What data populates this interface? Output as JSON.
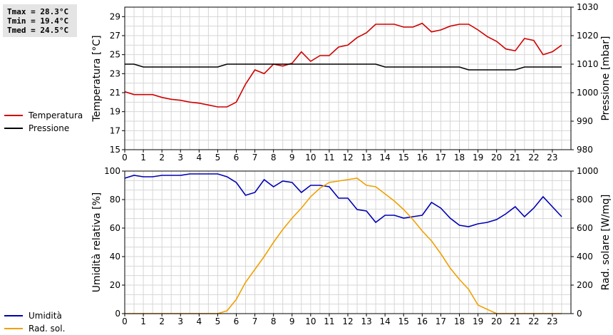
{
  "stats": {
    "tmax": "Tmax = 28.3°C",
    "tmin": "Tmin = 19.4°C",
    "tmed": "Tmed = 24.5°C"
  },
  "legend_top": [
    {
      "label": "Temperatura",
      "color": "#d00000"
    },
    {
      "label": "Pressione",
      "color": "#000000"
    }
  ],
  "legend_bottom": [
    {
      "label": "Umidità",
      "color": "#0000b4"
    },
    {
      "label": "Rad. sol.",
      "color": "#f0a000"
    }
  ],
  "chart_data": [
    {
      "type": "line",
      "xlim": [
        0,
        24
      ],
      "x_ticks": [
        0,
        1,
        2,
        3,
        4,
        5,
        6,
        7,
        8,
        9,
        10,
        11,
        12,
        13,
        14,
        15,
        16,
        17,
        18,
        19,
        20,
        21,
        22,
        23
      ],
      "ylabel_left": "Temperatura [°C]",
      "ylim_left": [
        15,
        30
      ],
      "y_ticks_left": [
        15,
        17,
        19,
        21,
        23,
        25,
        27,
        29
      ],
      "ylabel_right": "Pressione [mbar]",
      "ylim_right": [
        980,
        1030
      ],
      "y_ticks_right": [
        980,
        990,
        1000,
        1010,
        1020,
        1030
      ],
      "grid": true,
      "series": [
        {
          "name": "Temperatura",
          "axis": "left",
          "color": "#d00000",
          "x": [
            0,
            0.5,
            1,
            1.5,
            2,
            2.5,
            3,
            3.5,
            4,
            4.5,
            5,
            5.5,
            6,
            6.5,
            7,
            7.5,
            8,
            8.5,
            9,
            9.5,
            10,
            10.5,
            11,
            11.5,
            12,
            12.5,
            13,
            13.5,
            14,
            14.5,
            15,
            15.5,
            16,
            16.5,
            17,
            17.5,
            18,
            18.5,
            19,
            19.5,
            20,
            20.5,
            21,
            21.5,
            22,
            22.5,
            23,
            23.5
          ],
          "y": [
            21.1,
            20.8,
            20.8,
            20.8,
            20.5,
            20.3,
            20.2,
            20.0,
            19.9,
            19.7,
            19.5,
            19.5,
            20.0,
            21.9,
            23.4,
            23.0,
            24.0,
            23.8,
            24.1,
            25.3,
            24.3,
            24.9,
            24.9,
            25.8,
            26.0,
            26.8,
            27.3,
            28.2,
            28.2,
            28.2,
            27.9,
            27.9,
            28.3,
            27.4,
            27.6,
            28.0,
            28.2,
            28.2,
            27.6,
            26.9,
            26.4,
            25.6,
            25.4,
            26.7,
            26.5,
            25.0,
            25.3,
            26.0
          ]
        },
        {
          "name": "Pressione",
          "axis": "right",
          "color": "#000000",
          "x": [
            0,
            0.5,
            1,
            1.5,
            2,
            2.5,
            3,
            3.5,
            4,
            4.5,
            5,
            5.5,
            6,
            6.5,
            7,
            7.5,
            8,
            8.5,
            9,
            9.5,
            10,
            10.5,
            11,
            11.5,
            12,
            12.5,
            13,
            13.5,
            14,
            14.5,
            15,
            15.5,
            16,
            16.5,
            17,
            17.5,
            18,
            18.5,
            19,
            19.5,
            20,
            20.5,
            21,
            21.5,
            22,
            22.5,
            23,
            23.5
          ],
          "y": [
            1010,
            1010,
            1009,
            1009,
            1009,
            1009,
            1009,
            1009,
            1009,
            1009,
            1009,
            1010,
            1010,
            1010,
            1010,
            1010,
            1010,
            1010,
            1010,
            1010,
            1010,
            1010,
            1010,
            1010,
            1010,
            1010,
            1010,
            1010,
            1009,
            1009,
            1009,
            1009,
            1009,
            1009,
            1009,
            1009,
            1009,
            1008,
            1008,
            1008,
            1008,
            1008,
            1008,
            1009,
            1009,
            1009,
            1009,
            1009
          ]
        }
      ]
    },
    {
      "type": "line",
      "xlim": [
        0,
        24
      ],
      "x_ticks": [
        0,
        1,
        2,
        3,
        4,
        5,
        6,
        7,
        8,
        9,
        10,
        11,
        12,
        13,
        14,
        15,
        16,
        17,
        18,
        19,
        20,
        21,
        22,
        23
      ],
      "ylabel_left": "Umidità relativa [%]",
      "ylim_left": [
        0,
        100
      ],
      "y_ticks_left": [
        0,
        20,
        40,
        60,
        80,
        100
      ],
      "ylabel_right": "Rad. solare [W/mq]",
      "ylim_right": [
        0,
        1000
      ],
      "y_ticks_right": [
        0,
        200,
        400,
        600,
        800,
        1000
      ],
      "grid": true,
      "series": [
        {
          "name": "Umidità",
          "axis": "left",
          "color": "#0000b4",
          "x": [
            0,
            0.5,
            1,
            1.5,
            2,
            2.5,
            3,
            3.5,
            4,
            4.5,
            5,
            5.5,
            6,
            6.5,
            7,
            7.5,
            8,
            8.5,
            9,
            9.5,
            10,
            10.5,
            11,
            11.5,
            12,
            12.5,
            13,
            13.5,
            14,
            14.5,
            15,
            15.5,
            16,
            16.5,
            17,
            17.5,
            18,
            18.5,
            19,
            19.5,
            20,
            20.5,
            21,
            21.5,
            22,
            22.5,
            23,
            23.5
          ],
          "y": [
            95,
            97,
            96,
            96,
            97,
            97,
            97,
            98,
            98,
            98,
            98,
            96,
            92,
            83,
            85,
            94,
            89,
            93,
            92,
            85,
            90,
            90,
            89,
            81,
            81,
            73,
            72,
            64,
            69,
            69,
            67,
            68,
            69,
            78,
            74,
            67,
            62,
            61,
            63,
            64,
            66,
            70,
            75,
            68,
            74,
            82,
            75,
            68
          ]
        },
        {
          "name": "Rad. sol.",
          "axis": "right",
          "color": "#f0a000",
          "x": [
            0,
            0.5,
            1,
            1.5,
            2,
            2.5,
            3,
            3.5,
            4,
            4.5,
            5,
            5.5,
            6,
            6.5,
            7,
            7.5,
            8,
            8.5,
            9,
            9.5,
            10,
            10.5,
            11,
            11.5,
            12,
            12.5,
            13,
            13.5,
            14,
            14.5,
            15,
            15.5,
            16,
            16.5,
            17,
            17.5,
            18,
            18.5,
            19,
            19.5,
            20,
            20.5,
            21,
            21.5,
            22,
            22.5,
            23,
            23.5
          ],
          "y": [
            0,
            0,
            0,
            0,
            0,
            0,
            0,
            0,
            0,
            0,
            0,
            20,
            100,
            220,
            310,
            400,
            500,
            590,
            670,
            740,
            820,
            880,
            920,
            930,
            940,
            950,
            900,
            890,
            840,
            790,
            730,
            660,
            580,
            510,
            420,
            320,
            240,
            170,
            60,
            30,
            0,
            0,
            0,
            0,
            0,
            0,
            0,
            0
          ]
        }
      ]
    }
  ]
}
